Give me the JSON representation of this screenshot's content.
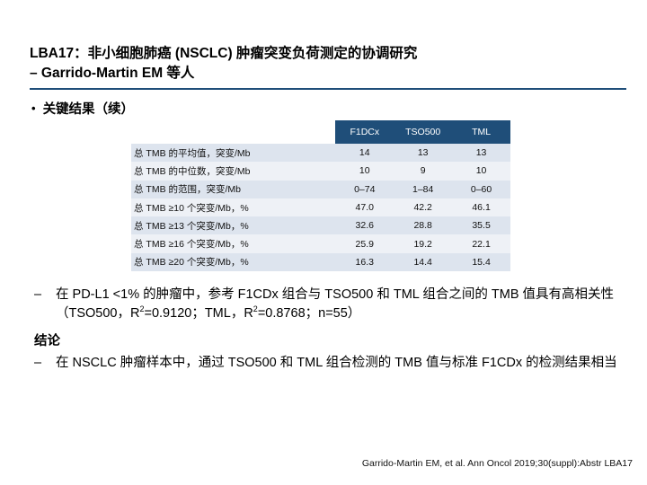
{
  "title": {
    "line1": "LBA17：非小细胞肺癌 (NSCLC) 肿瘤突变负荷测定的协调研究",
    "line2": "– Garrido-Martin EM 等人"
  },
  "section": {
    "bullet": "•",
    "label": "关键结果（续）"
  },
  "table": {
    "headers": [
      "F1DCx",
      "TSO500",
      "TML"
    ],
    "rows": [
      {
        "label": "总 TMB 的平均值，突变/Mb",
        "values": [
          "14",
          "13",
          "13"
        ]
      },
      {
        "label": "总 TMB 的中位数，突变/Mb",
        "values": [
          "10",
          "9",
          "10"
        ]
      },
      {
        "label": "总 TMB 的范围，突变/Mb",
        "values": [
          "0–74",
          "1–84",
          "0–60"
        ]
      },
      {
        "label": "总 TMB ≥10 个突变/Mb，%",
        "values": [
          "47.0",
          "42.2",
          "46.1"
        ]
      },
      {
        "label": "总 TMB ≥13 个突变/Mb，%",
        "values": [
          "32.6",
          "28.8",
          "35.5"
        ]
      },
      {
        "label": "总 TMB ≥16 个突变/Mb，%",
        "values": [
          "25.9",
          "19.2",
          "22.1"
        ]
      },
      {
        "label": "总 TMB ≥20 个突变/Mb，%",
        "values": [
          "16.3",
          "14.4",
          "15.4"
        ]
      }
    ]
  },
  "note": {
    "dash": "–",
    "part1": "在 PD-L1 <1% 的肿瘤中，参考 F1CDx 组合与 TSO500 和 TML 组合之间的 TMB 值具有高相关性（TSO500，R",
    "sup1": "2",
    "part2": "=0.9120；TML，R",
    "sup2": "2",
    "part3": "=0.8768；n=55）"
  },
  "conclusion": {
    "heading": "结论",
    "dash": "–",
    "text": "在 NSCLC 肿瘤样本中，通过 TSO500 和 TML 组合检测的 TMB 值与标准 F1CDx 的检测结果相当"
  },
  "citation": "Garrido-Martin EM, et al. Ann Oncol 2019;30(suppl):Abstr LBA17",
  "colors": {
    "header_bg": "#1f4e79",
    "row_odd": "#dde4ee",
    "row_even": "#eef1f6"
  }
}
